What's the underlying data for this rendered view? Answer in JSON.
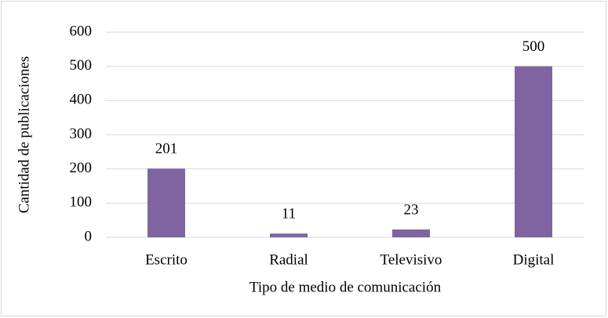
{
  "chart_data": {
    "type": "bar",
    "categories": [
      "Escrito",
      "Radial",
      "Televisivo",
      "Digital"
    ],
    "values": [
      201,
      11,
      23,
      500
    ],
    "color": "#8064a2",
    "ylim": [
      0,
      600
    ],
    "yticks": [
      0,
      100,
      200,
      300,
      400,
      500,
      600
    ],
    "grid": true,
    "data_labels": true,
    "x_label": "Tipo de medio de comunicación",
    "y_label": "Cantidad de publicaciones"
  }
}
